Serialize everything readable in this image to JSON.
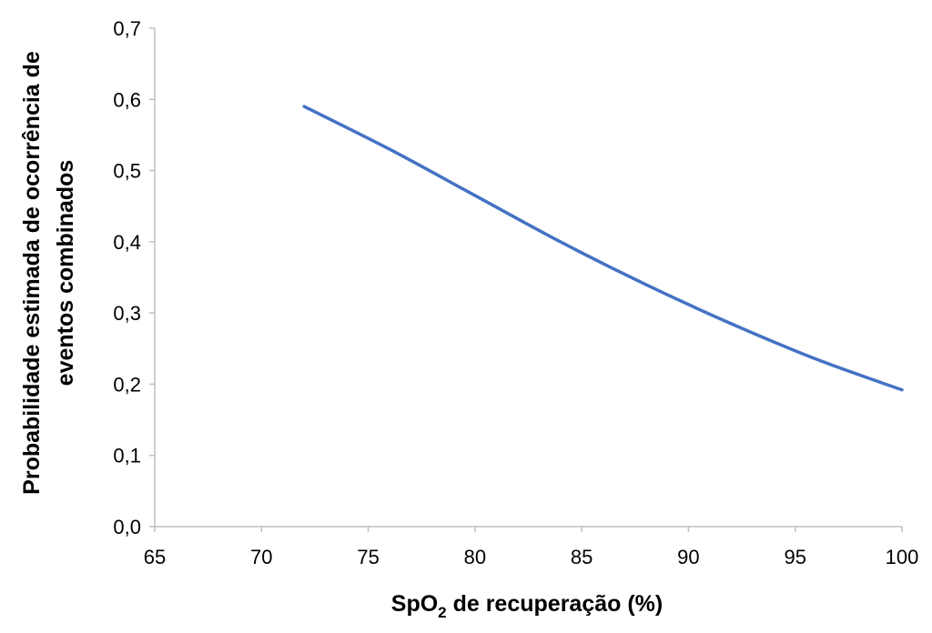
{
  "chart_data": {
    "type": "line",
    "title": "",
    "xlabel": {
      "main": "SpO",
      "subscript": "2",
      "rest": " de recuperação (%)"
    },
    "ylabel": {
      "line1": "Probabilidade estimada de ocorrência de",
      "line2": "eventos combinados"
    },
    "xlim": [
      65,
      100
    ],
    "ylim": [
      0,
      0.7
    ],
    "x_ticks": [
      {
        "value": 65,
        "label": "65"
      },
      {
        "value": 70,
        "label": "70"
      },
      {
        "value": 75,
        "label": "75"
      },
      {
        "value": 80,
        "label": "80"
      },
      {
        "value": 85,
        "label": "85"
      },
      {
        "value": 90,
        "label": "90"
      },
      {
        "value": 95,
        "label": "95"
      },
      {
        "value": 100,
        "label": "100"
      }
    ],
    "y_ticks": [
      {
        "value": 0,
        "label": "0,0"
      },
      {
        "value": 0.1,
        "label": "0,1"
      },
      {
        "value": 0.2,
        "label": "0,2"
      },
      {
        "value": 0.3,
        "label": "0,3"
      },
      {
        "value": 0.4,
        "label": "0,4"
      },
      {
        "value": 0.5,
        "label": "0,5"
      },
      {
        "value": 0.6,
        "label": "0,6"
      },
      {
        "value": 0.7,
        "label": "0,7"
      }
    ],
    "grid": false,
    "legend": "none",
    "series": [
      {
        "color": "#4472c4",
        "x": [
          72,
          76,
          80,
          84,
          88,
          92,
          96,
          100
        ],
        "y": [
          0.59,
          0.53,
          0.465,
          0.4,
          0.34,
          0.285,
          0.235,
          0.192
        ]
      }
    ]
  }
}
